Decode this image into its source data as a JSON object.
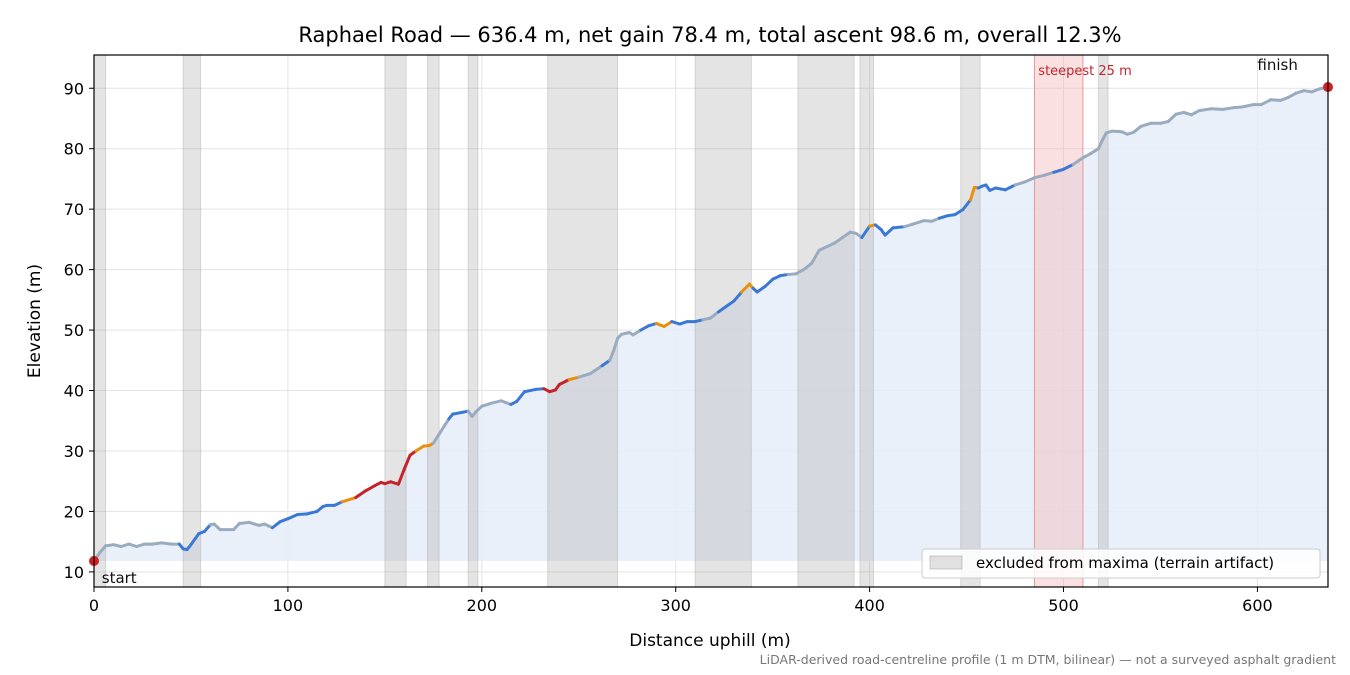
{
  "chart_data": {
    "type": "line",
    "title": "Raphael Road — 636.4 m, net gain 78.4 m, total ascent 98.6 m, overall 12.3%",
    "xlabel": "Distance uphill (m)",
    "ylabel": "Elevation (m)",
    "xlim": [
      0,
      636.4
    ],
    "ylim": [
      7.5,
      95.5
    ],
    "xticks": [
      0,
      100,
      200,
      300,
      400,
      500,
      600
    ],
    "yticks": [
      10,
      20,
      30,
      40,
      50,
      60,
      70,
      80,
      90
    ],
    "grid": true,
    "legend": {
      "placement": "lower-right",
      "entries": [
        "excluded from maxima (terrain artifact)"
      ]
    },
    "footnote": "LiDAR-derived road-centreline profile (1 m DTM, bilinear) — not a surveyed asphalt gradient",
    "annotations": {
      "start": "start",
      "finish": "finish",
      "steepest": "steepest 25 m"
    },
    "steepest_window": [
      485,
      510
    ],
    "fill_baseline": 11.8,
    "excluded_ranges": [
      [
        0,
        6
      ],
      [
        46,
        55
      ],
      [
        150,
        161
      ],
      [
        172,
        178
      ],
      [
        193,
        198
      ],
      [
        234,
        270
      ],
      [
        310,
        339
      ],
      [
        363,
        392
      ],
      [
        395,
        402
      ],
      [
        447,
        457
      ],
      [
        518,
        523
      ]
    ],
    "grade_colors": {
      "gentle": "#9aabc0",
      "moderate": "#3a78d6",
      "steep": "#e8900e",
      "very_steep": "#c4232a"
    },
    "endpoint_color": "#cc2222",
    "profile": [
      [
        0,
        11.8
      ],
      [
        3,
        13.2
      ],
      [
        6,
        14.3
      ],
      [
        10,
        14.5
      ],
      [
        14,
        14.2
      ],
      [
        18,
        14.6
      ],
      [
        22,
        14.2
      ],
      [
        26,
        14.6
      ],
      [
        30,
        14.6
      ],
      [
        35,
        14.8
      ],
      [
        40,
        14.6
      ],
      [
        44,
        14.6
      ],
      [
        46,
        13.8
      ],
      [
        48,
        13.7
      ],
      [
        50,
        14.5
      ],
      [
        54,
        16.3
      ],
      [
        57,
        16.7
      ],
      [
        60,
        17.8
      ],
      [
        62,
        17.9
      ],
      [
        65,
        17.0
      ],
      [
        72,
        17.0
      ],
      [
        75,
        18.0
      ],
      [
        80,
        18.2
      ],
      [
        85,
        17.7
      ],
      [
        88,
        17.9
      ],
      [
        92,
        17.3
      ],
      [
        96,
        18.3
      ],
      [
        100,
        18.8
      ],
      [
        105,
        19.5
      ],
      [
        110,
        19.6
      ],
      [
        115,
        20.0
      ],
      [
        118,
        20.8
      ],
      [
        120,
        21.0
      ],
      [
        124,
        21.0
      ],
      [
        128,
        21.6
      ],
      [
        135,
        22.3
      ],
      [
        140,
        23.4
      ],
      [
        145,
        24.3
      ],
      [
        148,
        24.8
      ],
      [
        150,
        24.6
      ],
      [
        153,
        24.9
      ],
      [
        157,
        24.5
      ],
      [
        160,
        27.0
      ],
      [
        163,
        29.3
      ],
      [
        166,
        30.0
      ],
      [
        170,
        30.8
      ],
      [
        173,
        30.9
      ],
      [
        175,
        31.3
      ],
      [
        178,
        32.8
      ],
      [
        181,
        34.3
      ],
      [
        183,
        35.3
      ],
      [
        185,
        36.1
      ],
      [
        190,
        36.4
      ],
      [
        193,
        36.6
      ],
      [
        195,
        35.7
      ],
      [
        197,
        36.5
      ],
      [
        200,
        37.4
      ],
      [
        205,
        37.9
      ],
      [
        210,
        38.3
      ],
      [
        215,
        37.7
      ],
      [
        218,
        38.2
      ],
      [
        222,
        39.8
      ],
      [
        228,
        40.2
      ],
      [
        232,
        40.3
      ],
      [
        235,
        39.8
      ],
      [
        238,
        40.1
      ],
      [
        240,
        41.0
      ],
      [
        245,
        41.8
      ],
      [
        250,
        42.2
      ],
      [
        256,
        42.8
      ],
      [
        262,
        44.1
      ],
      [
        266,
        45.0
      ],
      [
        268,
        46.6
      ],
      [
        270,
        48.6
      ],
      [
        272,
        49.3
      ],
      [
        276,
        49.6
      ],
      [
        278,
        49.2
      ],
      [
        282,
        50.0
      ],
      [
        286,
        50.7
      ],
      [
        290,
        51.1
      ],
      [
        294,
        50.6
      ],
      [
        298,
        51.4
      ],
      [
        302,
        51.0
      ],
      [
        306,
        51.4
      ],
      [
        310,
        51.4
      ],
      [
        314,
        51.7
      ],
      [
        318,
        52.0
      ],
      [
        322,
        53.0
      ],
      [
        326,
        53.9
      ],
      [
        330,
        54.8
      ],
      [
        334,
        56.3
      ],
      [
        338,
        57.6
      ],
      [
        340,
        56.9
      ],
      [
        342,
        56.3
      ],
      [
        346,
        57.2
      ],
      [
        350,
        58.4
      ],
      [
        354,
        59.0
      ],
      [
        358,
        59.2
      ],
      [
        362,
        59.3
      ],
      [
        366,
        60.0
      ],
      [
        370,
        61.0
      ],
      [
        374,
        63.2
      ],
      [
        378,
        63.8
      ],
      [
        382,
        64.4
      ],
      [
        386,
        65.3
      ],
      [
        390,
        66.2
      ],
      [
        393,
        66.0
      ],
      [
        396,
        65.3
      ],
      [
        400,
        67.2
      ],
      [
        403,
        67.4
      ],
      [
        406,
        66.6
      ],
      [
        408,
        65.7
      ],
      [
        412,
        66.9
      ],
      [
        418,
        67.1
      ],
      [
        422,
        67.5
      ],
      [
        428,
        68.1
      ],
      [
        432,
        68.0
      ],
      [
        436,
        68.5
      ],
      [
        440,
        68.9
      ],
      [
        444,
        69.1
      ],
      [
        448,
        69.9
      ],
      [
        452,
        71.5
      ],
      [
        454,
        73.6
      ],
      [
        456,
        73.5
      ],
      [
        458,
        73.8
      ],
      [
        460,
        74.0
      ],
      [
        462,
        73.1
      ],
      [
        465,
        73.5
      ],
      [
        470,
        73.2
      ],
      [
        475,
        74.0
      ],
      [
        480,
        74.5
      ],
      [
        485,
        75.2
      ],
      [
        490,
        75.6
      ],
      [
        495,
        76.1
      ],
      [
        500,
        76.6
      ],
      [
        505,
        77.4
      ],
      [
        510,
        78.5
      ],
      [
        514,
        79.2
      ],
      [
        518,
        80.0
      ],
      [
        520,
        81.4
      ],
      [
        522,
        82.6
      ],
      [
        525,
        82.9
      ],
      [
        530,
        82.8
      ],
      [
        533,
        82.4
      ],
      [
        536,
        82.7
      ],
      [
        540,
        83.7
      ],
      [
        545,
        84.2
      ],
      [
        550,
        84.2
      ],
      [
        554,
        84.5
      ],
      [
        558,
        85.7
      ],
      [
        562,
        86.0
      ],
      [
        566,
        85.6
      ],
      [
        570,
        86.3
      ],
      [
        576,
        86.6
      ],
      [
        582,
        86.5
      ],
      [
        588,
        86.8
      ],
      [
        592,
        86.9
      ],
      [
        598,
        87.3
      ],
      [
        602,
        87.3
      ],
      [
        607,
        88.1
      ],
      [
        612,
        88.0
      ],
      [
        616,
        88.5
      ],
      [
        620,
        89.2
      ],
      [
        624,
        89.6
      ],
      [
        628,
        89.4
      ],
      [
        632,
        89.9
      ],
      [
        636.4,
        90.2
      ]
    ],
    "segment_grades": [
      "gentle",
      "gentle",
      "gentle",
      "gentle",
      "gentle",
      "gentle",
      "gentle",
      "gentle",
      "gentle",
      "gentle",
      "gentle",
      "moderate",
      "moderate",
      "moderate",
      "moderate",
      "moderate",
      "moderate",
      "gentle",
      "gentle",
      "gentle",
      "gentle",
      "gentle",
      "gentle",
      "gentle",
      "gentle",
      "moderate",
      "moderate",
      "moderate",
      "moderate",
      "moderate",
      "moderate",
      "moderate",
      "moderate",
      "moderate",
      "steep",
      "very_steep",
      "very_steep",
      "very_steep",
      "very_steep",
      "very_steep",
      "very_steep",
      "very_steep",
      "very_steep",
      "very_steep",
      "steep",
      "steep",
      "steep",
      "gentle",
      "gentle",
      "gentle",
      "moderate",
      "moderate",
      "moderate",
      "gentle",
      "gentle",
      "gentle",
      "gentle",
      "gentle",
      "gentle",
      "moderate",
      "moderate",
      "moderate",
      "moderate",
      "very_steep",
      "very_steep",
      "very_steep",
      "very_steep",
      "steep",
      "gentle",
      "gentle",
      "moderate",
      "gentle",
      "gentle",
      "gentle",
      "gentle",
      "gentle",
      "gentle",
      "moderate",
      "moderate",
      "steep",
      "steep",
      "moderate",
      "moderate",
      "moderate",
      "moderate",
      "gentle",
      "gentle",
      "moderate",
      "moderate",
      "moderate",
      "steep",
      "steep",
      "moderate",
      "moderate",
      "moderate",
      "moderate",
      "moderate",
      "gentle",
      "gentle",
      "gentle",
      "gentle",
      "gentle",
      "gentle",
      "gentle",
      "gentle",
      "gentle",
      "gentle",
      "moderate",
      "steep",
      "moderate",
      "moderate",
      "moderate",
      "moderate",
      "gentle",
      "gentle",
      "gentle",
      "gentle",
      "moderate",
      "moderate",
      "moderate",
      "moderate",
      "steep",
      "steep",
      "moderate",
      "moderate",
      "moderate",
      "moderate",
      "moderate",
      "moderate",
      "gentle",
      "gentle",
      "gentle",
      "gentle",
      "moderate",
      "moderate",
      "gentle",
      "gentle",
      "gentle",
      "gentle",
      "gentle",
      "gentle",
      "gentle",
      "gentle",
      "gentle",
      "gentle",
      "gentle",
      "gentle",
      "gentle",
      "gentle",
      "gentle",
      "gentle",
      "gentle",
      "gentle",
      "gentle",
      "gentle",
      "gentle",
      "gentle",
      "gentle",
      "gentle",
      "gentle",
      "gentle"
    ]
  }
}
